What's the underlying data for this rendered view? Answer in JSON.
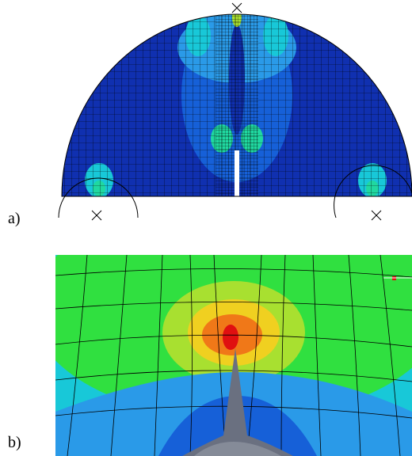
{
  "figure": {
    "panels": [
      {
        "id": "a",
        "label": "a)"
      },
      {
        "id": "b",
        "label": "b)"
      }
    ],
    "colors": {
      "deep_blue": "#1030b0",
      "blue": "#1660d8",
      "light_blue": "#2a9ae8",
      "cyan": "#18c8d8",
      "cyan_green": "#20d8a0",
      "green": "#30e040",
      "yellow_green": "#a8e030",
      "yellow": "#f0d020",
      "orange": "#f07818",
      "red": "#e01010",
      "notch": "#6a7080",
      "mesh_line": "#000000"
    }
  }
}
